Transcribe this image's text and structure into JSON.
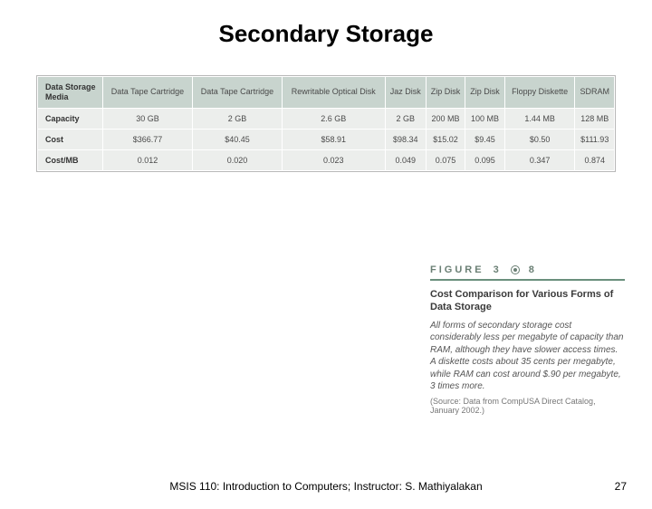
{
  "title": "Secondary Storage",
  "table": {
    "row_headers": [
      "Data Storage Media",
      "Capacity",
      "Cost",
      "Cost/MB"
    ],
    "columns": [
      "Data Tape Cartridge",
      "Data Tape Cartridge",
      "Rewritable Optical Disk",
      "Jaz Disk",
      "Zip Disk",
      "Zip Disk",
      "Floppy Diskette",
      "SDRAM"
    ],
    "rows": [
      [
        "30 GB",
        "2 GB",
        "2.6 GB",
        "2 GB",
        "200 MB",
        "100 MB",
        "1.44 MB",
        "128 MB"
      ],
      [
        "$366.77",
        "$40.45",
        "$58.91",
        "$98.34",
        "$15.02",
        "$9.45",
        "$0.50",
        "$111.93"
      ],
      [
        "0.012",
        "0.020",
        "0.023",
        "0.049",
        "0.075",
        "0.095",
        "0.347",
        "0.874"
      ]
    ],
    "header_bg": "#c8d4ce",
    "cell_bg": "#eceeec",
    "border_color": "#ffffff"
  },
  "figure": {
    "label_prefix": "FIGURE",
    "label_num_left": "3",
    "label_num_right": "8",
    "title": "Cost Comparison for Various Forms of Data Storage",
    "body": "All forms of secondary storage cost considerably less per megabyte of capacity than RAM, although they have slower access times. A diskette costs about 35 cents per megabyte, while RAM can cost around $.90 per megabyte, 3 times more.",
    "source": "(Source: Data from CompUSA Direct Catalog, January 2002.)",
    "rule_color": "#6a8f7d"
  },
  "footer": {
    "course": "MSIS 110:  Introduction to Computers;   Instructor: S. Mathiyalakan",
    "page": "27"
  }
}
